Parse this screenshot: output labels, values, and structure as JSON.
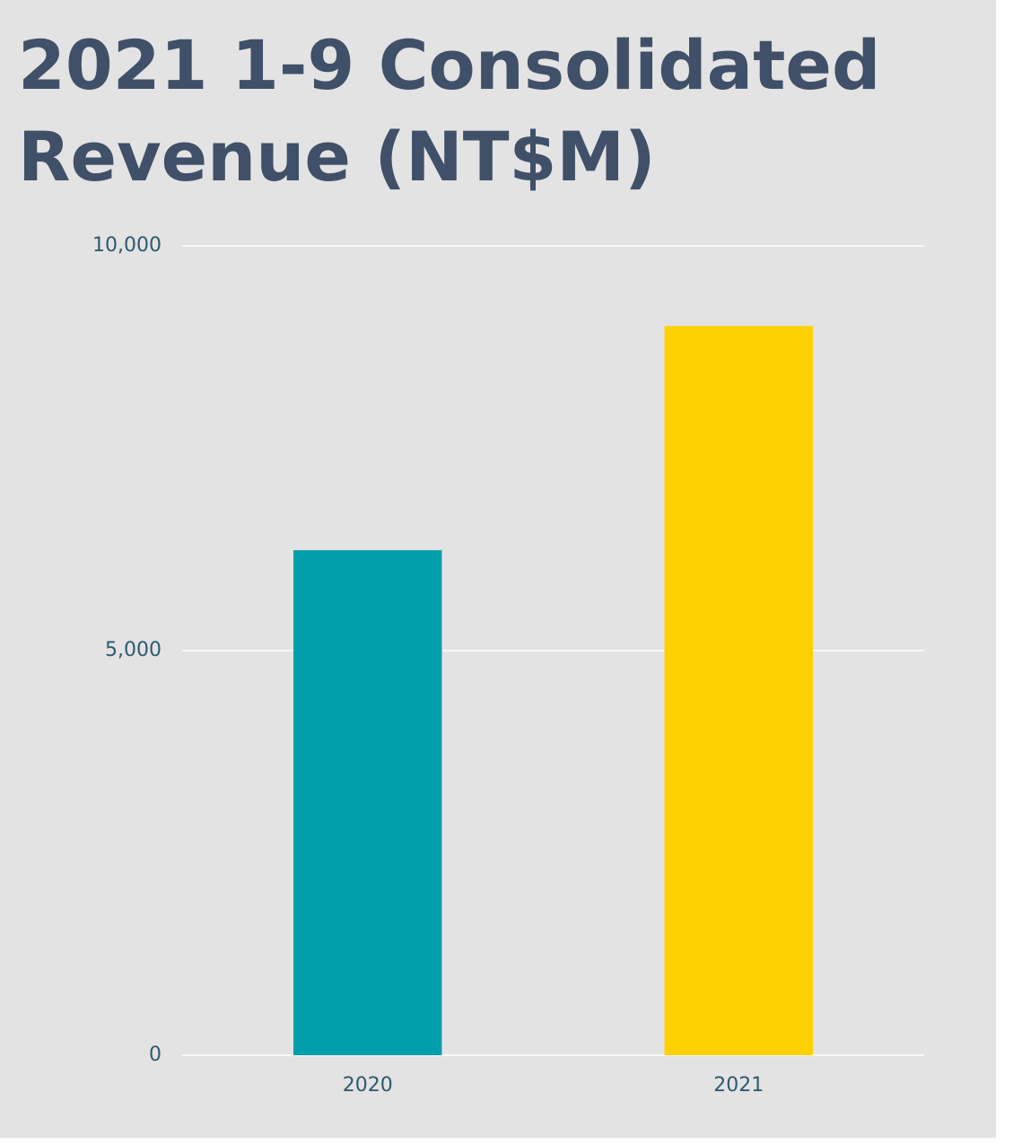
{
  "chart_data": {
    "type": "bar",
    "title": "2021 1-9 Consolidated Revenue (NT$M)",
    "categories": [
      "2020",
      "2021"
    ],
    "values": [
      6240,
      9010
    ],
    "colors": [
      "#009fab",
      "#fdd100"
    ],
    "ylim": [
      0,
      10000
    ],
    "yticks": [
      0,
      {
        "value": 5000,
        "label": "5,000"
      },
      {
        "value": 10000,
        "label": "10,000"
      }
    ],
    "grid": true
  }
}
